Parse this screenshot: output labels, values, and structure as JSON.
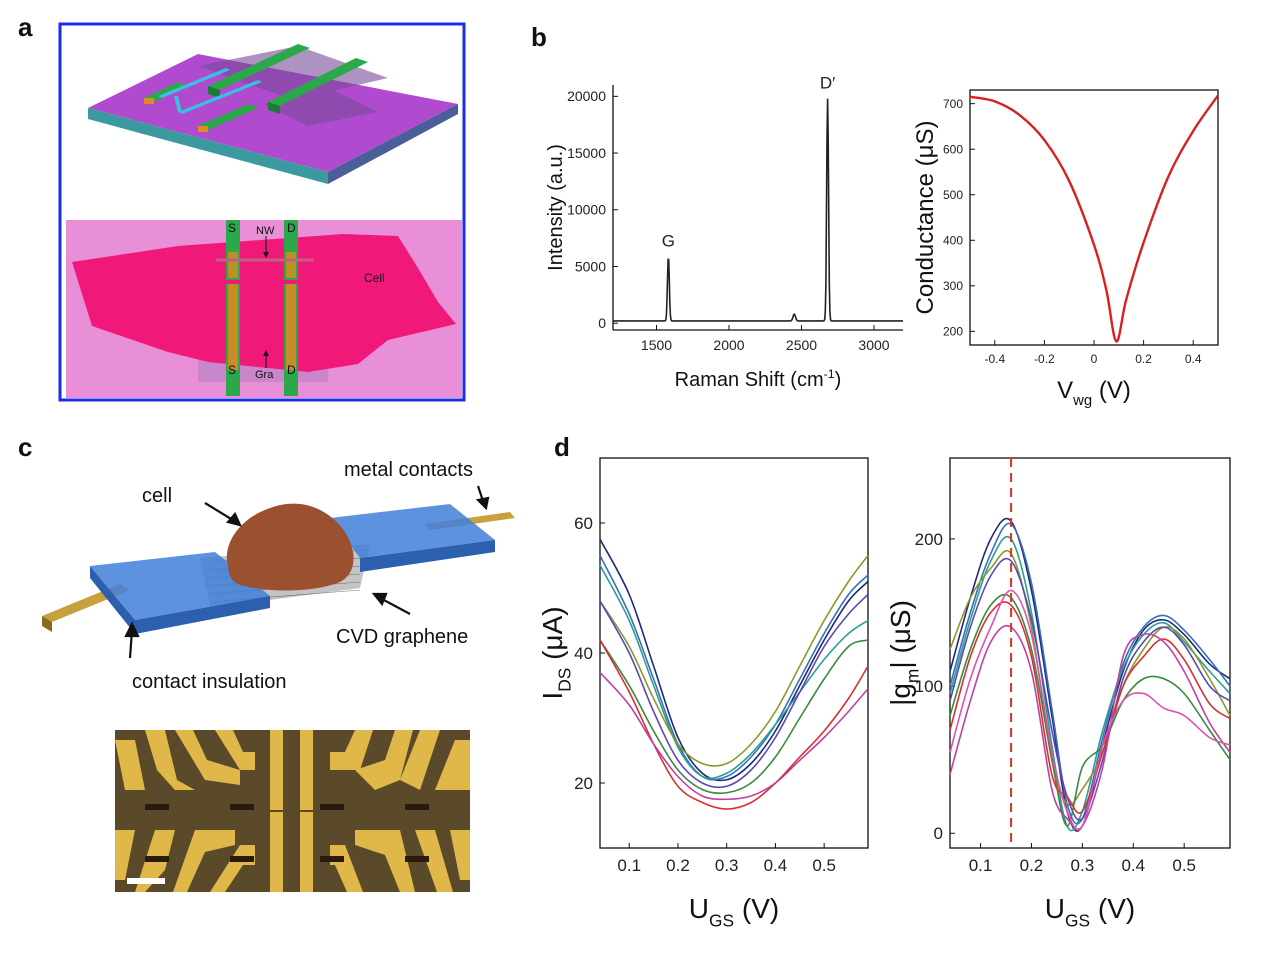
{
  "panels": {
    "a": {
      "letter": "a",
      "labels": {
        "s_top": "S",
        "d_top": "D",
        "nw": "NW",
        "cell": "Cell",
        "s_bot": "S",
        "d_bot": "D",
        "gra": "Gra"
      },
      "colors": {
        "border": "#1a2ee6",
        "substrate": "#b04bd0",
        "cell": "#f0197a",
        "background": "#e88fd8"
      }
    },
    "b": {
      "letter": "b"
    },
    "c": {
      "letter": "c",
      "labels": {
        "cell": "cell",
        "metal_contacts": "metal contacts",
        "cvd_graphene": "CVD graphene",
        "contact_insulation": "contact insulation"
      },
      "colors": {
        "insulation": "#3f7fd8",
        "cell": "#9b5030",
        "contacts": "#c8a040"
      }
    },
    "d": {
      "letter": "d"
    }
  },
  "chart_data": [
    {
      "id": "raman",
      "type": "line",
      "xlabel": "Raman Shift (cm",
      "xlabel_sup": "-1",
      "xlabel_end": ")",
      "ylabel": "Intensity (a.u.)",
      "xlim": [
        1200,
        3200
      ],
      "ylim": [
        -600,
        21000
      ],
      "xticks": [
        1500,
        2000,
        2500,
        3000
      ],
      "yticks": [
        0,
        5000,
        10000,
        15000,
        20000
      ],
      "peaks": [
        {
          "label": "G",
          "x": 1582,
          "y": 5900
        },
        {
          "label": "D′",
          "x": 2680,
          "y": 19800
        }
      ],
      "minor_peak": {
        "x": 2450,
        "y": 800
      },
      "baseline": 200,
      "color": "#222222"
    },
    {
      "id": "conductance",
      "type": "line",
      "xlabel": "V",
      "xlabel_sub": "wg",
      "xlabel_end": " (V)",
      "ylabel": "Conductance (μS)",
      "xlim": [
        -0.5,
        0.5
      ],
      "ylim": [
        170,
        730
      ],
      "xticks": [
        -0.4,
        -0.2,
        0,
        0.2,
        0.4
      ],
      "yticks": [
        200,
        300,
        400,
        500,
        600,
        700
      ],
      "x": [
        -0.5,
        -0.4,
        -0.3,
        -0.2,
        -0.1,
        0.0,
        0.05,
        0.09,
        0.13,
        0.2,
        0.3,
        0.4,
        0.5
      ],
      "y": [
        715,
        705,
        675,
        620,
        530,
        390,
        290,
        178,
        270,
        395,
        540,
        640,
        718
      ],
      "color": "#d92020"
    },
    {
      "id": "ids",
      "type": "line",
      "xlabel": "U",
      "xlabel_sub": "GS",
      "xlabel_end": " (V)",
      "ylabel": "I",
      "ylabel_sub": "DS",
      "ylabel_end": " (μA)",
      "xlim": [
        0.04,
        0.59
      ],
      "ylim": [
        10,
        70
      ],
      "xticks": [
        0.1,
        0.2,
        0.3,
        0.4,
        0.5
      ],
      "yticks": [
        20,
        40,
        60
      ],
      "x": [
        0.04,
        0.1,
        0.15,
        0.2,
        0.25,
        0.3,
        0.35,
        0.4,
        0.45,
        0.5,
        0.55,
        0.59
      ],
      "series": [
        {
          "color": "#1e2a78",
          "values": [
            57.5,
            49,
            38,
            27,
            21.5,
            20.5,
            23,
            28,
            35,
            42,
            48,
            51
          ]
        },
        {
          "color": "#3a6fc0",
          "values": [
            55,
            46,
            36,
            26,
            21,
            21,
            24,
            29,
            36,
            43,
            49,
            52
          ]
        },
        {
          "color": "#2aa090",
          "values": [
            53.5,
            45,
            35,
            25.5,
            21,
            21.5,
            24.5,
            29,
            34,
            39,
            43,
            45
          ]
        },
        {
          "color": "#8a9a2a",
          "values": [
            48,
            41,
            33,
            26,
            23,
            23,
            26,
            31,
            38,
            45,
            51,
            55
          ]
        },
        {
          "color": "#5a48b8",
          "values": [
            48,
            40,
            31,
            23.5,
            20,
            19.5,
            22,
            27,
            34,
            41,
            46,
            49
          ]
        },
        {
          "color": "#3a8a40",
          "values": [
            42,
            35,
            28,
            22,
            19,
            18.5,
            20,
            24,
            30,
            36,
            41,
            42
          ]
        },
        {
          "color": "#d83030",
          "values": [
            42,
            34,
            26,
            19.5,
            17,
            16,
            17,
            20,
            24,
            28,
            33,
            38
          ]
        },
        {
          "color": "#c040a0",
          "values": [
            37,
            32,
            26,
            21,
            18,
            17.5,
            18,
            20,
            23.5,
            27,
            31,
            34.5
          ]
        }
      ]
    },
    {
      "id": "gm",
      "type": "line",
      "xlabel": "U",
      "xlabel_sub": "GS",
      "xlabel_end": " (V)",
      "ylabel": "|g",
      "ylabel_sub": "m",
      "ylabel_end": "| (μS)",
      "xlim": [
        0.04,
        0.59
      ],
      "ylim": [
        -10,
        255
      ],
      "xticks": [
        0.1,
        0.2,
        0.3,
        0.4,
        0.5
      ],
      "yticks": [
        0,
        100,
        200
      ],
      "vline": {
        "x": 0.16,
        "color": "#e03020"
      },
      "x": [
        0.04,
        0.08,
        0.12,
        0.16,
        0.2,
        0.24,
        0.27,
        0.3,
        0.34,
        0.38,
        0.42,
        0.46,
        0.5,
        0.55,
        0.59
      ],
      "series": [
        {
          "color": "#1e2a78",
          "values": [
            110,
            160,
            200,
            212,
            165,
            80,
            15,
            5,
            60,
            110,
            138,
            145,
            135,
            115,
            105
          ]
        },
        {
          "color": "#3a6fc0",
          "values": [
            100,
            150,
            190,
            210,
            170,
            85,
            20,
            10,
            65,
            115,
            140,
            148,
            138,
            118,
            100
          ]
        },
        {
          "color": "#2aa090",
          "values": [
            95,
            145,
            185,
            200,
            150,
            60,
            5,
            15,
            70,
            112,
            135,
            143,
            130,
            110,
            95
          ]
        },
        {
          "color": "#8a9a2a",
          "values": [
            125,
            160,
            180,
            190,
            140,
            50,
            20,
            30,
            55,
            100,
            125,
            140,
            132,
            105,
            80
          ]
        },
        {
          "color": "#5a48b8",
          "values": [
            90,
            140,
            175,
            185,
            145,
            70,
            25,
            10,
            50,
            105,
            130,
            140,
            128,
            100,
            90
          ]
        },
        {
          "color": "#3a8a40",
          "values": [
            80,
            125,
            155,
            160,
            125,
            50,
            5,
            45,
            60,
            90,
            105,
            105,
            95,
            70,
            50
          ]
        },
        {
          "color": "#d83030",
          "values": [
            70,
            120,
            150,
            155,
            120,
            40,
            25,
            15,
            55,
            100,
            120,
            132,
            118,
            88,
            78
          ]
        },
        {
          "color": "#c040a0",
          "values": [
            40,
            90,
            130,
            140,
            110,
            30,
            10,
            5,
            45,
            120,
            135,
            130,
            110,
            75,
            55
          ]
        },
        {
          "color": "#e050b0",
          "values": [
            55,
            105,
            140,
            165,
            135,
            55,
            15,
            5,
            60,
            90,
            95,
            85,
            80,
            65,
            60
          ]
        }
      ]
    }
  ]
}
